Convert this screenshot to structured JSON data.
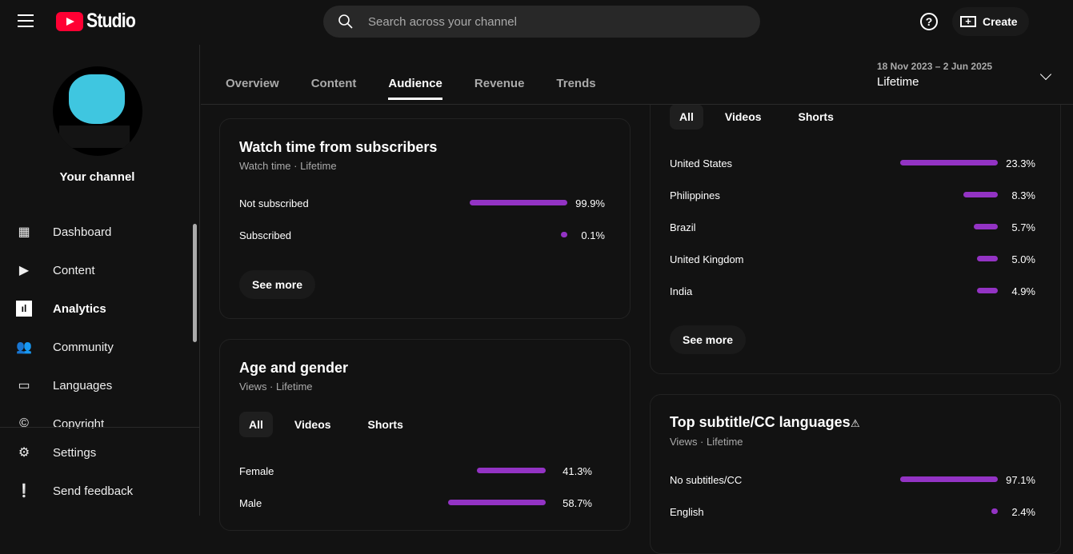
{
  "header": {
    "app": "Studio",
    "search_placeholder": "Search across your channel",
    "create": "Create",
    "help": "?"
  },
  "sidebar": {
    "channel": "Your channel",
    "items": [
      {
        "label": "Dashboard"
      },
      {
        "label": "Content"
      },
      {
        "label": "Analytics"
      },
      {
        "label": "Community"
      },
      {
        "label": "Languages"
      },
      {
        "label": "Copyright"
      }
    ],
    "bottom": [
      {
        "label": "Settings"
      },
      {
        "label": "Send feedback"
      }
    ]
  },
  "tabs": [
    "Overview",
    "Content",
    "Audience",
    "Revenue",
    "Trends"
  ],
  "date_range": {
    "dates": "18 Nov 2023 – 2 Jun 2025",
    "label": "Lifetime"
  },
  "colors": {
    "accent": "#9333c4",
    "bg": "#121212"
  },
  "cards": {
    "subs": {
      "title": "Watch time from subscribers",
      "subtitle": "Watch time · Lifetime",
      "rows": [
        {
          "label": "Not subscribed",
          "value": 99.9,
          "pct": "99.9%"
        },
        {
          "label": "Subscribed",
          "value": 0.1,
          "pct": "0.1%"
        }
      ],
      "more": "See more"
    },
    "age": {
      "title": "Age and gender",
      "subtitle": "Views · Lifetime",
      "filters": [
        "All",
        "Videos",
        "Shorts"
      ],
      "rows": [
        {
          "label": "Female",
          "value": 41.3,
          "pct": "41.3%"
        },
        {
          "label": "Male",
          "value": 58.7,
          "pct": "58.7%"
        }
      ]
    },
    "geo": {
      "filters": [
        "All",
        "Videos",
        "Shorts"
      ],
      "rows": [
        {
          "label": "United States",
          "value": 23.3,
          "pct": "23.3%"
        },
        {
          "label": "Philippines",
          "value": 8.3,
          "pct": "8.3%"
        },
        {
          "label": "Brazil",
          "value": 5.7,
          "pct": "5.7%"
        },
        {
          "label": "United Kingdom",
          "value": 5.0,
          "pct": "5.0%"
        },
        {
          "label": "India",
          "value": 4.9,
          "pct": "4.9%"
        }
      ],
      "more": "See more"
    },
    "subtitles": {
      "title": "Top subtitle/CC languages",
      "subtitle": "Views · Lifetime",
      "rows": [
        {
          "label": "No subtitles/CC",
          "value": 97.1,
          "pct": "97.1%"
        },
        {
          "label": "English",
          "value": 2.4,
          "pct": "2.4%"
        }
      ]
    }
  }
}
